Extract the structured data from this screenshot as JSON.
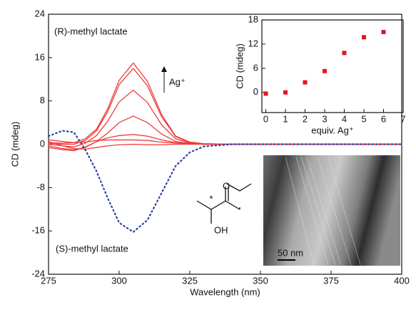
{
  "chart_data": [
    {
      "type": "line",
      "xlabel": "Wavelength (nm)",
      "ylabel": "CD (mdeg)",
      "annotations": [
        "(R)-methyl lactate",
        "(S)-methyl lactate",
        "Ag⁺"
      ],
      "xlim": [
        275,
        400
      ],
      "xticks": [
        275,
        300,
        325,
        350,
        375,
        400
      ],
      "ylim": [
        -24,
        24
      ],
      "yticks": [
        -24,
        -16,
        -8,
        0,
        8,
        16,
        24
      ],
      "x": [
        275,
        280,
        284,
        288,
        292,
        296,
        300,
        305,
        310,
        315,
        320,
        325,
        330,
        340,
        360,
        400
      ],
      "series": [
        {
          "color": "#ee3b3b",
          "style": "solid",
          "values": [
            0.3,
            0.2,
            0.3,
            1.0,
            2.8,
            6.6,
            11.8,
            15,
            11.6,
            5.5,
            1.5,
            0.4,
            0.1,
            0,
            0,
            0
          ]
        },
        {
          "color": "#ee3b3b",
          "style": "solid",
          "values": [
            0.2,
            0,
            0,
            0.7,
            2.5,
            6.1,
            11,
            14,
            10.8,
            5.1,
            1.4,
            0.3,
            0.1,
            0,
            0,
            0
          ]
        },
        {
          "color": "#ee3b3b",
          "style": "solid",
          "values": [
            0,
            -0.3,
            -0.5,
            0.2,
            1.6,
            4.3,
            7.8,
            10,
            7.7,
            3.6,
            1,
            0.2,
            0,
            0,
            0,
            0
          ]
        },
        {
          "color": "#ee3b3b",
          "style": "solid",
          "values": [
            -0.3,
            -0.8,
            -1,
            -0.6,
            0.5,
            2.1,
            4,
            5.2,
            4,
            1.9,
            0.5,
            0.1,
            0,
            0,
            0,
            0
          ]
        },
        {
          "color": "#ee3b3b",
          "style": "solid",
          "values": [
            -0.6,
            -1,
            -1.2,
            -0.5,
            0.5,
            1.2,
            1.6,
            1.8,
            1.5,
            0.8,
            0.3,
            0.1,
            0,
            0,
            0,
            0
          ]
        },
        {
          "color": "#ee3b3b",
          "style": "solid",
          "values": [
            0.8,
            0.5,
            0.3,
            0.4,
            0.7,
            0.8,
            0.8,
            0.8,
            0.7,
            0.4,
            0.2,
            0.1,
            0,
            0,
            0,
            0
          ]
        },
        {
          "color": "#ee3b3b",
          "style": "solid",
          "values": [
            0.5,
            -0.3,
            -0.8,
            -0.9,
            -0.6,
            -0.3,
            -0.1,
            0,
            -0.1,
            -0.1,
            0,
            0,
            0,
            0,
            0,
            0
          ]
        },
        {
          "color": "#2b3fa8",
          "style": "dotted",
          "values": [
            1.5,
            2.5,
            2.2,
            -1,
            -5,
            -10,
            -14.5,
            -16.2,
            -14,
            -9,
            -4,
            -1.5,
            -0.4,
            0,
            0,
            0
          ]
        }
      ]
    },
    {
      "type": "scatter",
      "xlabel": "equiv. Ag⁺",
      "ylabel": "CD (mdeg)",
      "xlim": [
        -0.2,
        7
      ],
      "xticks": [
        0,
        1,
        2,
        3,
        4,
        5,
        6,
        7
      ],
      "ylim": [
        -5,
        18
      ],
      "yticks": [
        0,
        6,
        12,
        18
      ],
      "x": [
        0,
        1,
        2,
        3,
        4,
        5,
        6
      ],
      "values": [
        -0.3,
        0,
        2.5,
        5.3,
        9.8,
        13.7,
        15
      ],
      "color": "#e8141b"
    }
  ],
  "molecule": {
    "label": "OH",
    "stereo_mark": "*"
  },
  "image": {
    "scale_bar": "50 nm"
  }
}
